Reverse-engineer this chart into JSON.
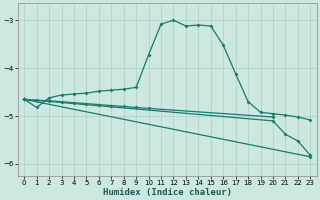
{
  "xlabel": "Humidex (Indice chaleur)",
  "bg_color": "#cce8e0",
  "grid_color": "#aacfc8",
  "line_color": "#1a7a6e",
  "xlim": [
    -0.5,
    23.5
  ],
  "ylim": [
    -6.25,
    -2.65
  ],
  "xticks": [
    0,
    1,
    2,
    3,
    4,
    5,
    6,
    7,
    8,
    9,
    10,
    11,
    12,
    13,
    14,
    15,
    16,
    17,
    18,
    19,
    20,
    21,
    22,
    23
  ],
  "yticks": [
    -6,
    -5,
    -4,
    -3
  ],
  "curve1_x": [
    0,
    1,
    2,
    3,
    4,
    5,
    6,
    7,
    8,
    9,
    10,
    11,
    12,
    13,
    14,
    15,
    16,
    17,
    18,
    19,
    20,
    21,
    22,
    23
  ],
  "curve1_y": [
    -4.65,
    -4.82,
    -4.62,
    -4.56,
    -4.54,
    -4.52,
    -4.48,
    -4.46,
    -4.44,
    -4.4,
    -3.72,
    -3.08,
    -3.0,
    -3.12,
    -3.1,
    -3.12,
    -3.52,
    -4.12,
    -4.7,
    -4.92,
    -4.95,
    -4.98,
    -5.02,
    -5.08
  ],
  "curve2_x": [
    0,
    1,
    2,
    3,
    4,
    5,
    6,
    7,
    8,
    9,
    10,
    20
  ],
  "curve2_y": [
    -4.65,
    -4.67,
    -4.68,
    -4.7,
    -4.72,
    -4.74,
    -4.76,
    -4.78,
    -4.8,
    -4.82,
    -4.84,
    -5.02
  ],
  "curve3_x": [
    0,
    23
  ],
  "curve3_y": [
    -4.65,
    -5.85
  ],
  "curve4_x": [
    0,
    20,
    21,
    22,
    23
  ],
  "curve4_y": [
    -4.65,
    -5.1,
    -5.38,
    -5.52,
    -5.82
  ]
}
